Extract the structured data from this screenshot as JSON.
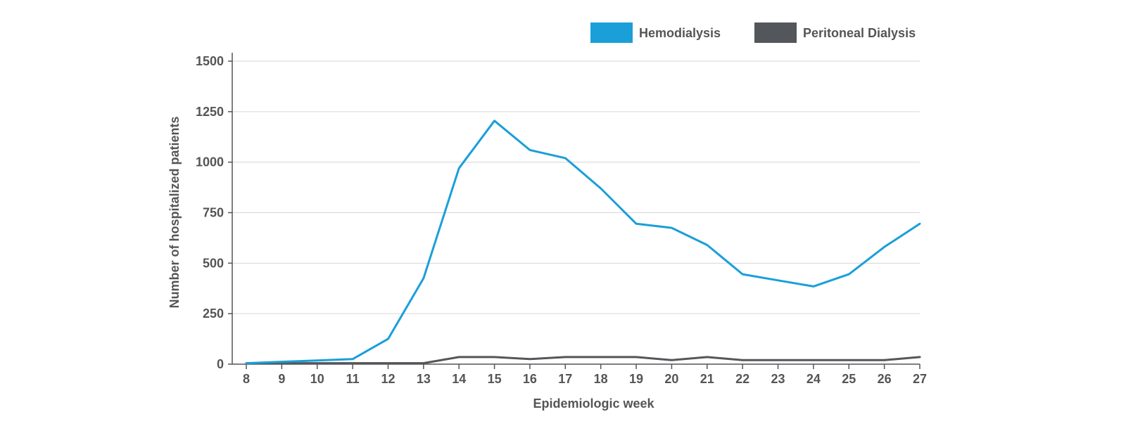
{
  "chart_data": {
    "type": "line",
    "title": "",
    "xlabel": "Epidemiologic week",
    "ylabel": "Number of hospitalized patients",
    "x": [
      8,
      9,
      10,
      11,
      12,
      13,
      14,
      15,
      16,
      17,
      18,
      19,
      20,
      21,
      22,
      23,
      24,
      25,
      26,
      27
    ],
    "x_tick_labels": [
      "8",
      "9",
      "10",
      "11",
      "12",
      "13",
      "14",
      "15",
      "16",
      "17",
      "18",
      "19",
      "20",
      "21",
      "22",
      "23",
      "24",
      "25",
      "26",
      "27"
    ],
    "ylim": [
      0,
      1500
    ],
    "y_ticks": [
      0,
      250,
      500,
      750,
      1000,
      1250,
      1500
    ],
    "y_tick_labels": [
      "0",
      "250",
      "500",
      "750",
      "1000",
      "1250",
      "1500"
    ],
    "grid": true,
    "legend_position": "top-right",
    "series": [
      {
        "name": "Hemodialysis",
        "color": "#1a9fd9",
        "values": [
          5,
          12,
          18,
          25,
          125,
          425,
          970,
          1205,
          1060,
          1020,
          870,
          695,
          675,
          590,
          445,
          415,
          385,
          445,
          580,
          695
        ]
      },
      {
        "name": "Peritoneal Dialysis",
        "color": "#53565a",
        "values": [
          5,
          5,
          5,
          5,
          5,
          5,
          35,
          35,
          25,
          35,
          35,
          35,
          20,
          35,
          20,
          20,
          20,
          20,
          20,
          35
        ]
      }
    ]
  }
}
